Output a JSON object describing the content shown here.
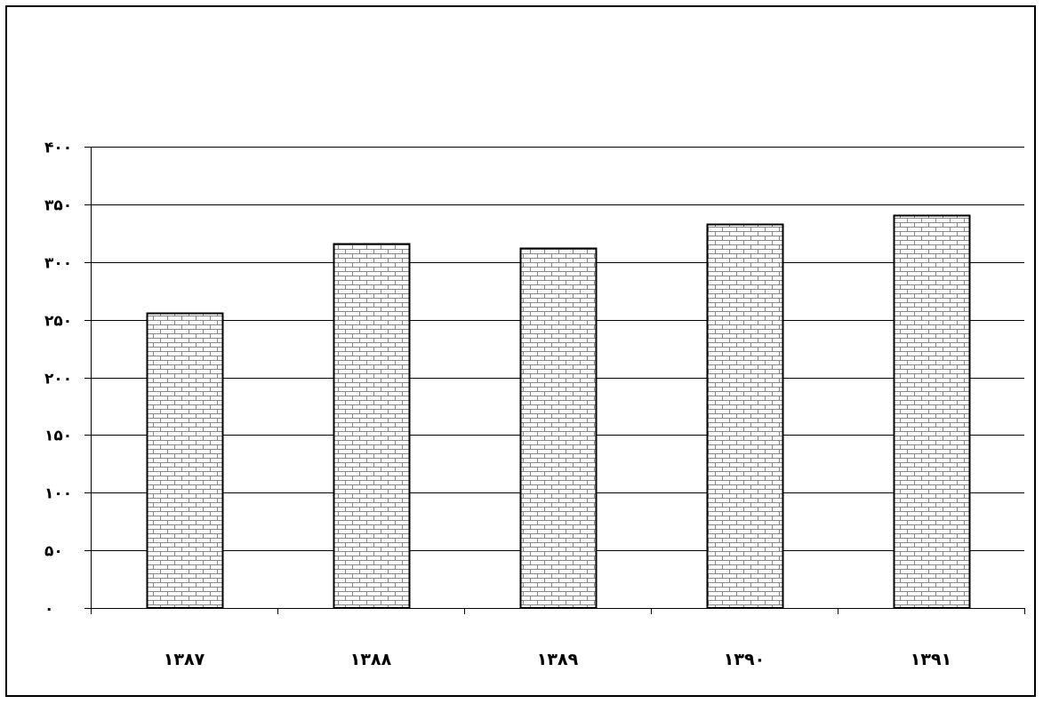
{
  "chart_data": {
    "type": "bar",
    "title": "",
    "xlabel": "",
    "ylabel": "",
    "categories": [
      "۱۳۸۷",
      "۱۳۸۸",
      "۱۳۸۹",
      "۱۳۹۰",
      "۱۳۹۱"
    ],
    "values": [
      256,
      316,
      312,
      333,
      341
    ],
    "ylim": [
      0,
      400
    ],
    "yticks": [
      0,
      50,
      100,
      150,
      200,
      250,
      300,
      350,
      400
    ],
    "ytick_labels": [
      "۰",
      "۵۰",
      "۱۰۰",
      "۱۵۰",
      "۲۰۰",
      "۲۵۰",
      "۳۰۰",
      "۳۵۰",
      "۴۰۰"
    ],
    "grid": true,
    "legend": "none",
    "bar_fill": "brick-pattern",
    "colors": {
      "bar_stroke": "#000000",
      "brick_line": "#888888",
      "background": "#ffffff",
      "grid": "#000000"
    }
  }
}
